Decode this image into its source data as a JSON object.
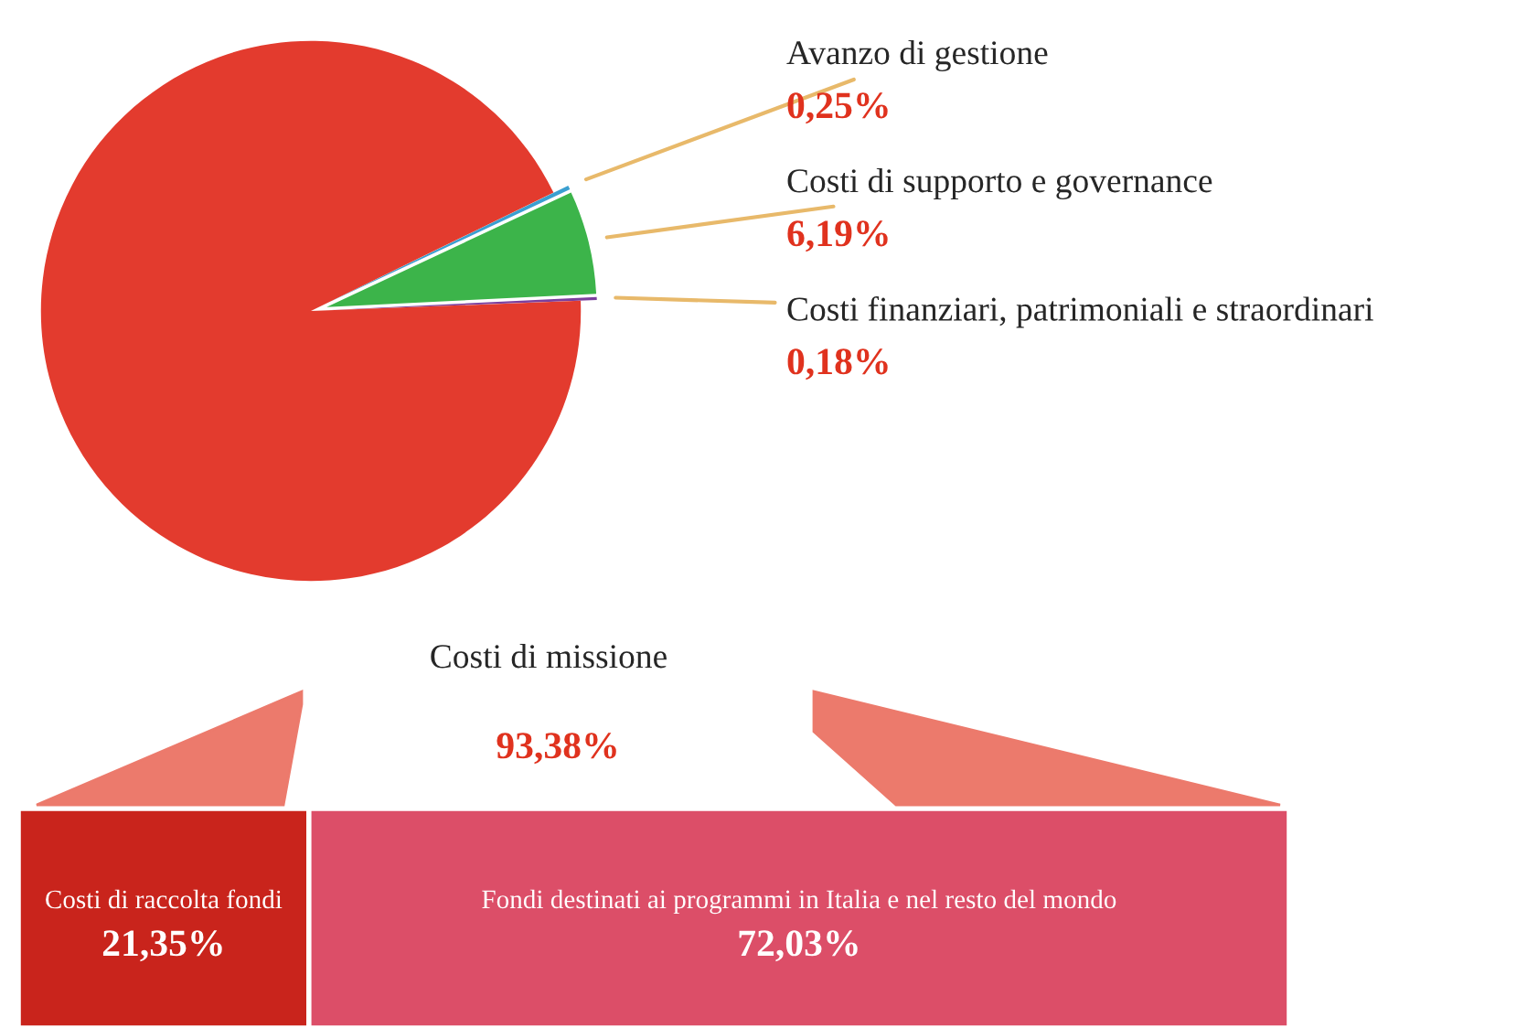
{
  "chart_data": [
    {
      "type": "pie",
      "categories": [
        "Avanzo di gestione",
        "Costi di supporto e governance",
        "Costi finanziari, patrimoniali e straordinari",
        "Costi di missione"
      ],
      "values": [
        0.25,
        6.19,
        0.18,
        93.38
      ],
      "colors": [
        "#3a9fd0",
        "#3cb44a",
        "#7b3f9e",
        "#e33b2e"
      ],
      "value_labels": [
        "0,25%",
        "6,19%",
        "0,18%",
        "93,38%"
      ]
    },
    {
      "type": "bar",
      "orientation": "horizontal",
      "stacked": true,
      "categories": [
        null
      ],
      "tick_labels": false,
      "xlim": [
        0,
        93.38
      ],
      "series": [
        {
          "name": "Costi di raccolta fondi",
          "color": "#c9241c",
          "values": [
            21.35
          ],
          "value_labels": [
            "21,35%"
          ]
        },
        {
          "name": "Fondi destinati ai programmi in Italia e nel resto del mondo",
          "color": "#dc4e68",
          "values": [
            72.03
          ],
          "value_labels": [
            "72,03%"
          ]
        }
      ]
    }
  ]
}
